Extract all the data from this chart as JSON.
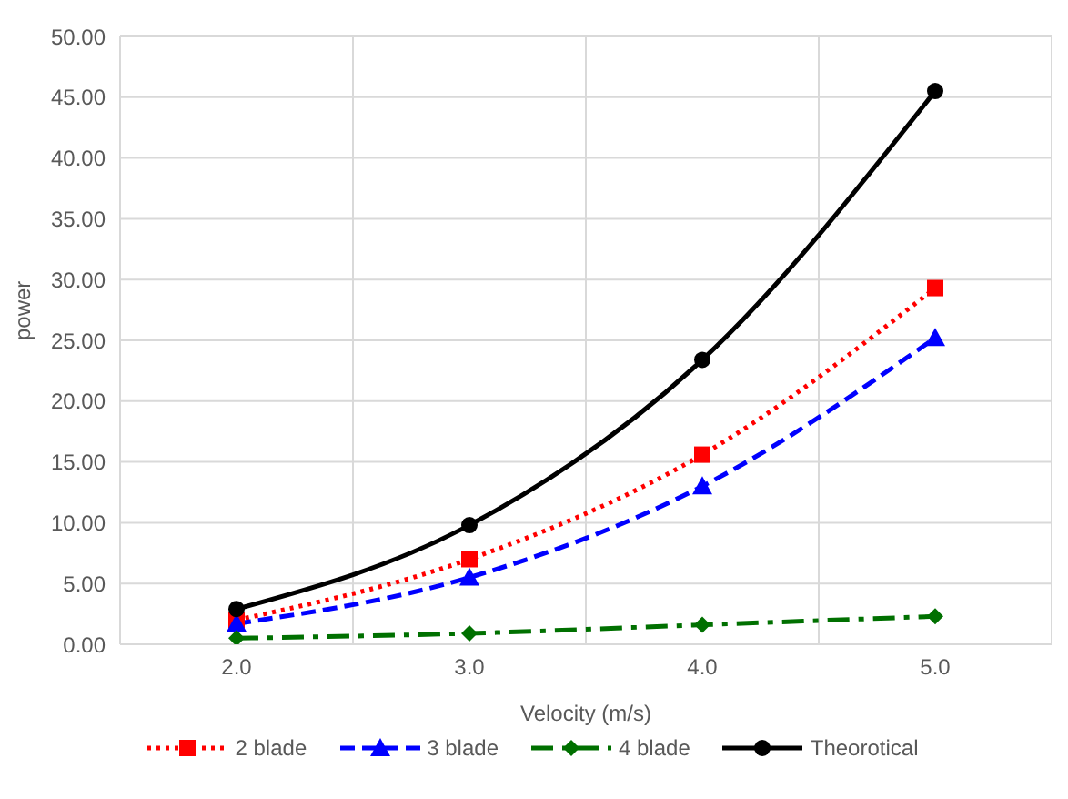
{
  "chart_data": {
    "type": "line",
    "xlabel": "Velocity (m/s)",
    "ylabel": "power",
    "categories": [
      "2.0",
      "3.0",
      "4.0",
      "5.0"
    ],
    "series": [
      {
        "name": "2 blade",
        "color": "#ff0000",
        "marker": "square",
        "line_style": "dotted",
        "values": [
          2.0,
          7.0,
          15.6,
          29.3
        ]
      },
      {
        "name": "3 blade",
        "color": "#0000ff",
        "marker": "triangle",
        "line_style": "dashed",
        "values": [
          1.7,
          5.5,
          13.0,
          25.2
        ]
      },
      {
        "name": "4 blade",
        "color": "#007000",
        "marker": "diamond",
        "line_style": "dashdot",
        "values": [
          0.5,
          0.9,
          1.6,
          2.3
        ]
      },
      {
        "name": "Theorotical",
        "color": "#000000",
        "marker": "circle",
        "line_style": "solid",
        "values": [
          2.9,
          9.8,
          23.4,
          45.5
        ]
      }
    ],
    "ylim": [
      0,
      50
    ],
    "yticks": [
      {
        "value": 0,
        "label": "0.00"
      },
      {
        "value": 5,
        "label": "5.00"
      },
      {
        "value": 10,
        "label": "10.00"
      },
      {
        "value": 15,
        "label": "15.00"
      },
      {
        "value": 20,
        "label": "20.00"
      },
      {
        "value": 25,
        "label": "25.00"
      },
      {
        "value": 30,
        "label": "30.00"
      },
      {
        "value": 35,
        "label": "35.00"
      },
      {
        "value": 40,
        "label": "40.00"
      },
      {
        "value": 45,
        "label": "45.00"
      },
      {
        "value": 50,
        "label": "50.00"
      }
    ],
    "grid": true,
    "legend": "bottom"
  }
}
